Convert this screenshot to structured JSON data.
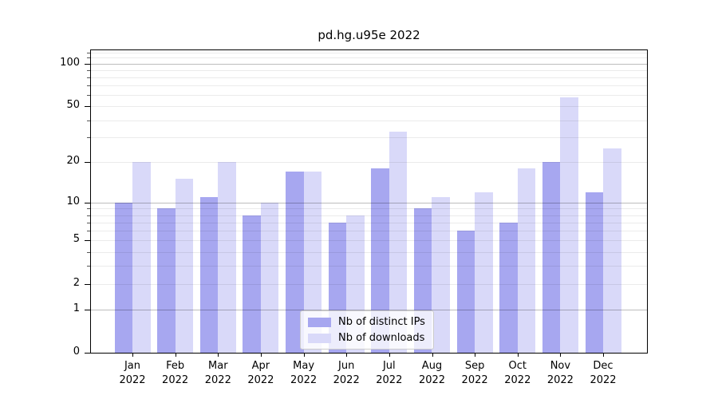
{
  "chart_data": {
    "type": "bar",
    "title": "pd.hg.u95e 2022",
    "categories": [
      "Jan 2022",
      "Feb 2022",
      "Mar 2022",
      "Apr 2022",
      "May 2022",
      "Jun 2022",
      "Jul 2022",
      "Aug 2022",
      "Sep 2022",
      "Oct 2022",
      "Nov 2022",
      "Dec 2022"
    ],
    "series": [
      {
        "name": "Nb of distinct IPs",
        "color": "#a7a7f0",
        "values": [
          10,
          9,
          11,
          8,
          17,
          7,
          18,
          9,
          6,
          7,
          20,
          12
        ]
      },
      {
        "name": "Nb of downloads",
        "color": "#d9d9f9",
        "values": [
          20,
          15,
          20,
          10,
          17,
          8,
          33,
          11,
          12,
          18,
          58,
          25
        ]
      }
    ],
    "xlabel": "",
    "ylabel": "",
    "yscale": "log1p",
    "ylim": [
      0,
      124
    ],
    "yticks": [
      0,
      1,
      2,
      5,
      10,
      20,
      50,
      100
    ],
    "ytick_labels": [
      "0",
      "1",
      "2",
      "5",
      "10",
      "20",
      "50",
      "100"
    ],
    "major_gridlines": [
      1,
      10,
      100
    ],
    "minor_gridlines": [
      2,
      3,
      4,
      5,
      6,
      7,
      8,
      9,
      20,
      30,
      40,
      50,
      60,
      70,
      80,
      90,
      110,
      120
    ],
    "grid": true,
    "legend_position": "lower center"
  }
}
